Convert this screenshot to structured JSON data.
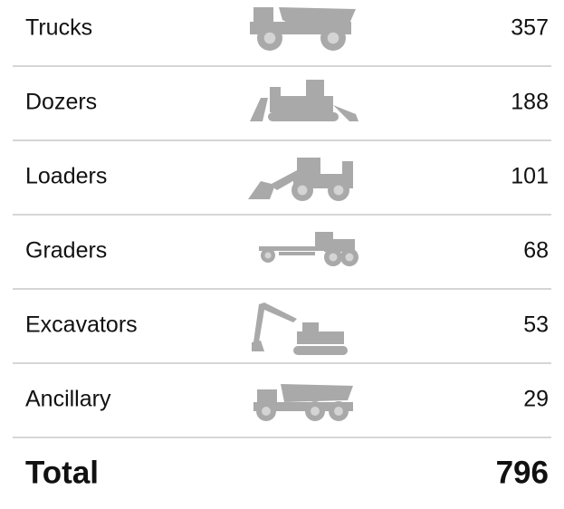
{
  "rows": [
    {
      "label": "Trucks",
      "count": 357
    },
    {
      "label": "Dozers",
      "count": 188
    },
    {
      "label": "Loaders",
      "count": 101
    },
    {
      "label": "Graders",
      "count": 68
    },
    {
      "label": "Excavators",
      "count": 53
    },
    {
      "label": "Ancillary",
      "count": 29
    }
  ],
  "total": {
    "label": "Total",
    "count": 796
  }
}
